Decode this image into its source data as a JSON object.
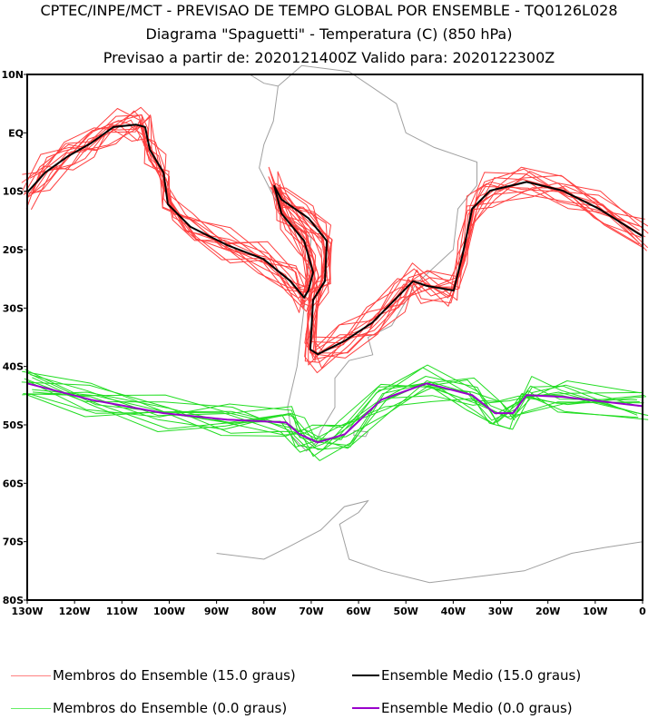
{
  "titles": {
    "line1": "CPTEC/INPE/MCT - PREVISAO DE TEMPO GLOBAL POR ENSEMBLE - TQ0126L028",
    "line2": "Diagrama \"Spaguetti\" - Temperatura (C) (850 hPa)",
    "line3": "Previsao a partir de: 2020121400Z  Valido para: 2020122300Z"
  },
  "legend": [
    {
      "label": "Membros do Ensemble (15.0 graus)",
      "color": "#ff4040"
    },
    {
      "label": "Ensemble Medio (15.0 graus)",
      "color": "#000000"
    },
    {
      "label": "Membros do Ensemble (0.0 graus)",
      "color": "#22dd22"
    },
    {
      "label": "Ensemble Medio (0.0 graus)",
      "color": "#9900cc"
    }
  ],
  "chart_data": {
    "type": "line",
    "title": "Diagrama \"Spaguetti\" - Temperatura (C) (850 hPa)",
    "xlim": [
      -130,
      0
    ],
    "ylim": [
      -80,
      10
    ],
    "x_ticks": [
      "130W",
      "120W",
      "110W",
      "100W",
      "90W",
      "80W",
      "70W",
      "60W",
      "50W",
      "40W",
      "30W",
      "20W",
      "10W",
      "0"
    ],
    "y_ticks": [
      "10N",
      "EQ",
      "10S",
      "20S",
      "30S",
      "40S",
      "50S",
      "60S",
      "70S",
      "80S"
    ],
    "member_count": 14,
    "series": [
      {
        "name": "Ensemble Medio (15.0 graus)",
        "color": "#000000",
        "points": [
          [
            -130,
            -10.2
          ],
          [
            -126.2,
            -6.8
          ],
          [
            -121.4,
            -4
          ],
          [
            -116.6,
            -1.8
          ],
          [
            -111.8,
            1
          ],
          [
            -107,
            1.4
          ],
          [
            -105.1,
            1
          ],
          [
            -104.1,
            -2.9
          ],
          [
            -101.2,
            -6.8
          ],
          [
            -100.3,
            -12.2
          ],
          [
            -95.5,
            -16.1
          ],
          [
            -87.8,
            -19.2
          ],
          [
            -80.1,
            -21.6
          ],
          [
            -74.4,
            -25.4
          ],
          [
            -71.5,
            -28.2
          ],
          [
            -70.6,
            -27
          ],
          [
            -69.6,
            -23.9
          ],
          [
            -71.5,
            -18.5
          ],
          [
            -76.3,
            -13.8
          ],
          [
            -77.8,
            -9.1
          ],
          [
            -76.3,
            -11.4
          ],
          [
            -70.6,
            -14.6
          ],
          [
            -66.7,
            -18.5
          ],
          [
            -67.1,
            -25.4
          ],
          [
            -69.6,
            -28.6
          ],
          [
            -70.2,
            -37.1
          ],
          [
            -68.6,
            -37.9
          ],
          [
            -62.9,
            -35.6
          ],
          [
            -57.1,
            -32.5
          ],
          [
            -51.4,
            -27.8
          ],
          [
            -48.5,
            -25.4
          ],
          [
            -45.6,
            -26.2
          ],
          [
            -39.9,
            -27
          ],
          [
            -38,
            -20.8
          ],
          [
            -36,
            -13
          ],
          [
            -32.2,
            -9.9
          ],
          [
            -24.5,
            -8.4
          ],
          [
            -16.9,
            -9.9
          ],
          [
            -9.2,
            -13
          ],
          [
            0,
            -17.7
          ]
        ]
      },
      {
        "name": "Ensemble Medio (0.0 graus)",
        "color": "#9900cc",
        "points": [
          [
            -130,
            -42.9
          ],
          [
            -116.6,
            -45.7
          ],
          [
            -101.2,
            -48
          ],
          [
            -87.8,
            -49.1
          ],
          [
            -75.3,
            -49.6
          ],
          [
            -72.5,
            -51.6
          ],
          [
            -68.6,
            -53
          ],
          [
            -62.9,
            -51.6
          ],
          [
            -55.2,
            -45.7
          ],
          [
            -45.6,
            -42.9
          ],
          [
            -36,
            -44.9
          ],
          [
            -31.2,
            -48
          ],
          [
            -27.4,
            -48
          ],
          [
            -24.5,
            -44.9
          ],
          [
            -16.9,
            -45.2
          ],
          [
            0,
            -46.8
          ]
        ]
      }
    ]
  }
}
